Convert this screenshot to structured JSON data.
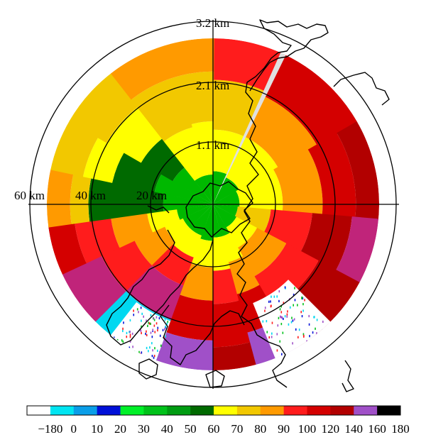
{
  "range_labels": [
    "60 km",
    "40 km",
    "20 km"
  ],
  "altitude_labels": [
    "3.2 km",
    "2.1 km",
    "1.1 km"
  ],
  "colorbar": {
    "tick_labels": [
      "−180",
      "0",
      "10",
      "20",
      "30",
      "40",
      "50",
      "60",
      "70",
      "80",
      "90",
      "100",
      "120",
      "140",
      "160",
      "180"
    ],
    "colors": [
      "#ffffff",
      "#00e5f2",
      "#0a9ee8",
      "#0010d8",
      "#00f028",
      "#00c21a",
      "#009c12",
      "#006a00",
      "#ffff00",
      "#f2c800",
      "#ff9a00",
      "#ff1c1c",
      "#d40000",
      "#b20000",
      "#a050c8",
      "#000000"
    ]
  }
}
